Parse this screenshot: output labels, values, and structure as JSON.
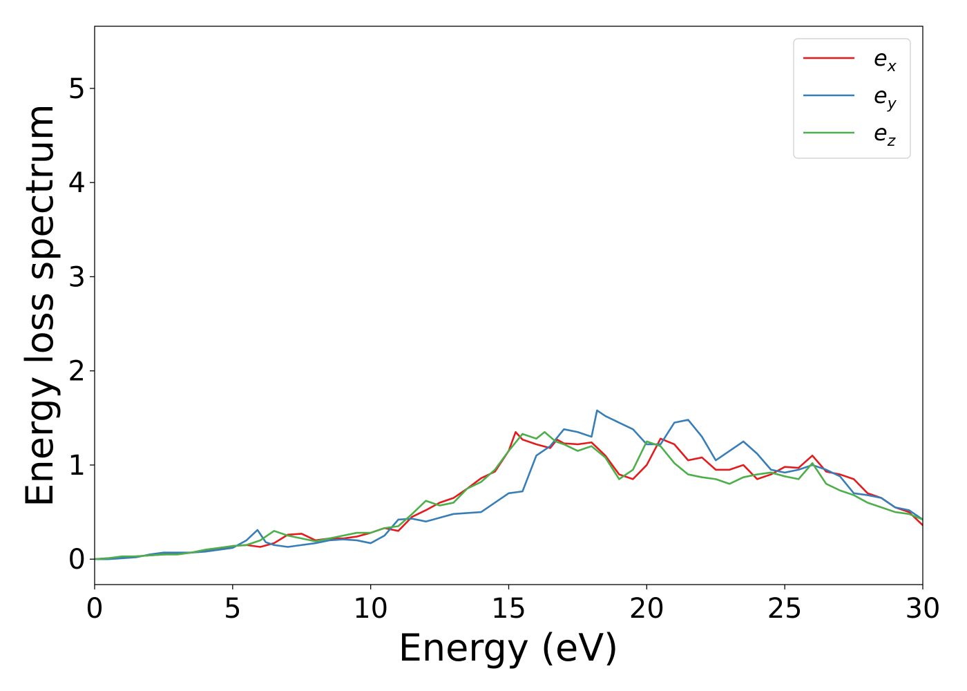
{
  "chart_data": {
    "type": "line",
    "title": "",
    "xlabel": "Energy (eV)",
    "ylabel": "Energy loss spectrum",
    "xlim": [
      0,
      30
    ],
    "ylim": [
      -0.27,
      5.66
    ],
    "xticks": [
      0,
      5,
      10,
      15,
      20,
      25,
      30
    ],
    "yticks": [
      0,
      1,
      2,
      3,
      4,
      5
    ],
    "grid": false,
    "legend_position": "top-right",
    "series": [
      {
        "name": "e",
        "subscript": "x",
        "color": "#e41a1c",
        "x": [
          0,
          0.5,
          1,
          1.5,
          2,
          2.5,
          3,
          3.5,
          4,
          4.5,
          5,
          5.5,
          6,
          6.5,
          7,
          7.5,
          8,
          8.5,
          9,
          9.5,
          10,
          10.5,
          11,
          11.5,
          12,
          12.5,
          13,
          13.5,
          14,
          14.5,
          15,
          15.25,
          15.5,
          16,
          16.5,
          16.75,
          17,
          17.5,
          18,
          18.5,
          19,
          19.5,
          20,
          20.5,
          21,
          21.5,
          22,
          22.5,
          23,
          23.5,
          24,
          24.5,
          25,
          25.5,
          26,
          26.5,
          27,
          27.5,
          28,
          28.5,
          29,
          29.5,
          30
        ],
        "y": [
          0,
          0.01,
          0.02,
          0.03,
          0.04,
          0.05,
          0.06,
          0.07,
          0.09,
          0.11,
          0.14,
          0.15,
          0.13,
          0.17,
          0.26,
          0.27,
          0.2,
          0.22,
          0.22,
          0.24,
          0.28,
          0.33,
          0.3,
          0.45,
          0.52,
          0.6,
          0.65,
          0.75,
          0.86,
          0.93,
          1.15,
          1.35,
          1.27,
          1.22,
          1.18,
          1.27,
          1.23,
          1.22,
          1.24,
          1.1,
          0.9,
          0.85,
          1.0,
          1.28,
          1.22,
          1.05,
          1.08,
          0.95,
          0.95,
          1.0,
          0.85,
          0.9,
          0.98,
          0.97,
          1.1,
          0.93,
          0.9,
          0.85,
          0.7,
          0.65,
          0.55,
          0.5,
          0.36
        ]
      },
      {
        "name": "e",
        "subscript": "y",
        "color": "#377eb8",
        "x": [
          0,
          0.5,
          1,
          1.5,
          2,
          2.5,
          3,
          3.5,
          4,
          4.5,
          5,
          5.5,
          5.9,
          6.2,
          6.5,
          7,
          7.5,
          8,
          8.5,
          9,
          9.5,
          10,
          10.5,
          11,
          11.5,
          12,
          12.5,
          13,
          13.5,
          14,
          14.5,
          15,
          15.5,
          16,
          16.5,
          17,
          17.5,
          18,
          18.2,
          18.5,
          19,
          19.5,
          20,
          20.5,
          21,
          21.5,
          22,
          22.5,
          23,
          23.5,
          24,
          24.5,
          25,
          25.5,
          26,
          26.5,
          27,
          27.5,
          28,
          28.5,
          29,
          29.5,
          30
        ],
        "y": [
          0,
          0.0,
          0.01,
          0.02,
          0.05,
          0.07,
          0.07,
          0.07,
          0.08,
          0.1,
          0.12,
          0.2,
          0.31,
          0.18,
          0.15,
          0.13,
          0.15,
          0.17,
          0.2,
          0.21,
          0.2,
          0.17,
          0.25,
          0.42,
          0.43,
          0.4,
          0.44,
          0.48,
          0.49,
          0.5,
          0.6,
          0.7,
          0.72,
          1.1,
          1.2,
          1.38,
          1.35,
          1.3,
          1.58,
          1.52,
          1.45,
          1.38,
          1.22,
          1.22,
          1.45,
          1.48,
          1.3,
          1.05,
          1.15,
          1.25,
          1.12,
          0.95,
          0.92,
          0.95,
          1.0,
          0.95,
          0.88,
          0.7,
          0.68,
          0.65,
          0.55,
          0.52,
          0.42
        ]
      },
      {
        "name": "e",
        "subscript": "z",
        "color": "#4daf4a",
        "x": [
          0,
          0.5,
          1,
          1.5,
          2,
          2.5,
          3,
          3.5,
          4,
          4.5,
          5,
          5.5,
          6,
          6.5,
          7,
          7.5,
          8,
          8.5,
          9,
          9.5,
          10,
          10.5,
          11,
          11.5,
          12,
          12.5,
          13,
          13.5,
          14,
          14.5,
          15,
          15.5,
          16,
          16.3,
          16.7,
          17,
          17.5,
          18,
          18.5,
          19,
          19.5,
          20,
          20.5,
          21,
          21.5,
          22,
          22.5,
          23,
          23.5,
          24,
          24.5,
          25,
          25.5,
          26,
          26.5,
          27,
          27.5,
          28,
          28.5,
          29,
          29.5,
          30
        ],
        "y": [
          0,
          0.01,
          0.03,
          0.03,
          0.04,
          0.05,
          0.05,
          0.07,
          0.1,
          0.12,
          0.14,
          0.15,
          0.2,
          0.3,
          0.25,
          0.22,
          0.19,
          0.22,
          0.25,
          0.28,
          0.28,
          0.33,
          0.35,
          0.48,
          0.62,
          0.57,
          0.6,
          0.75,
          0.82,
          0.95,
          1.15,
          1.33,
          1.28,
          1.35,
          1.25,
          1.22,
          1.15,
          1.2,
          1.08,
          0.85,
          0.95,
          1.25,
          1.2,
          1.02,
          0.9,
          0.87,
          0.85,
          0.8,
          0.87,
          0.9,
          0.92,
          0.88,
          0.85,
          1.02,
          0.8,
          0.73,
          0.68,
          0.6,
          0.55,
          0.5,
          0.48,
          0.42
        ]
      }
    ]
  }
}
